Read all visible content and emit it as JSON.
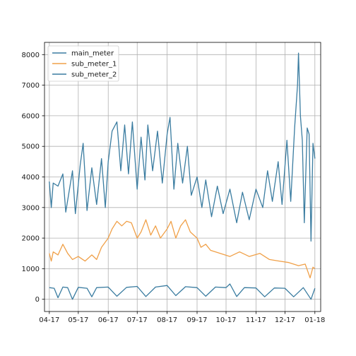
{
  "chart_data": {
    "type": "line",
    "title": "",
    "xlabel": "",
    "ylabel": "",
    "grid": true,
    "legend": {
      "placement": "top-left"
    },
    "x_range": [
      "2017-03-27",
      "2018-01-07"
    ],
    "ylim": [
      -400,
      8400
    ],
    "x_ticks": [
      {
        "date": "2017-04-01",
        "label": "04-17"
      },
      {
        "date": "2017-05-01",
        "label": "05-17"
      },
      {
        "date": "2017-06-01",
        "label": "06-17"
      },
      {
        "date": "2017-07-01",
        "label": "07-17"
      },
      {
        "date": "2017-08-01",
        "label": "08-17"
      },
      {
        "date": "2017-09-01",
        "label": "09-17"
      },
      {
        "date": "2017-10-01",
        "label": "10-17"
      },
      {
        "date": "2017-11-01",
        "label": "11-17"
      },
      {
        "date": "2017-12-01",
        "label": "12-17"
      },
      {
        "date": "2018-01-01",
        "label": "01-18"
      }
    ],
    "y_ticks": [
      0,
      1000,
      2000,
      3000,
      4000,
      5000,
      6000,
      7000,
      8000
    ],
    "series": [
      {
        "name": "main_meter",
        "color": "#3a7ca0",
        "points": [
          [
            "2017-04-01",
            3850
          ],
          [
            "2017-04-03",
            3000
          ],
          [
            "2017-04-05",
            3800
          ],
          [
            "2017-04-10",
            3700
          ],
          [
            "2017-04-15",
            4100
          ],
          [
            "2017-04-18",
            2850
          ],
          [
            "2017-04-25",
            4200
          ],
          [
            "2017-04-28",
            2800
          ],
          [
            "2017-05-03",
            4400
          ],
          [
            "2017-05-06",
            5100
          ],
          [
            "2017-05-10",
            2900
          ],
          [
            "2017-05-15",
            4300
          ],
          [
            "2017-05-20",
            3100
          ],
          [
            "2017-05-25",
            4600
          ],
          [
            "2017-05-29",
            3000
          ],
          [
            "2017-06-01",
            4500
          ],
          [
            "2017-06-05",
            5500
          ],
          [
            "2017-06-10",
            5800
          ],
          [
            "2017-06-14",
            4200
          ],
          [
            "2017-06-18",
            5700
          ],
          [
            "2017-06-22",
            4100
          ],
          [
            "2017-06-26",
            5800
          ],
          [
            "2017-07-01",
            3600
          ],
          [
            "2017-07-05",
            5300
          ],
          [
            "2017-07-09",
            3900
          ],
          [
            "2017-07-12",
            5700
          ],
          [
            "2017-07-17",
            4200
          ],
          [
            "2017-07-22",
            5500
          ],
          [
            "2017-07-27",
            3800
          ],
          [
            "2017-08-01",
            5400
          ],
          [
            "2017-08-04",
            5950
          ],
          [
            "2017-08-08",
            3600
          ],
          [
            "2017-08-12",
            5100
          ],
          [
            "2017-08-17",
            3800
          ],
          [
            "2017-08-22",
            5000
          ],
          [
            "2017-08-26",
            3400
          ],
          [
            "2017-09-01",
            4000
          ],
          [
            "2017-09-06",
            3000
          ],
          [
            "2017-09-10",
            3900
          ],
          [
            "2017-09-16",
            2700
          ],
          [
            "2017-09-22",
            3700
          ],
          [
            "2017-09-28",
            2800
          ],
          [
            "2017-10-05",
            3600
          ],
          [
            "2017-10-12",
            2500
          ],
          [
            "2017-10-18",
            3500
          ],
          [
            "2017-10-25",
            2600
          ],
          [
            "2017-11-01",
            3600
          ],
          [
            "2017-11-08",
            3000
          ],
          [
            "2017-11-13",
            4200
          ],
          [
            "2017-11-18",
            3200
          ],
          [
            "2017-11-24",
            4500
          ],
          [
            "2017-11-28",
            3100
          ],
          [
            "2017-12-03",
            5200
          ],
          [
            "2017-12-07",
            3200
          ],
          [
            "2017-12-11",
            5600
          ],
          [
            "2017-12-14",
            7000
          ],
          [
            "2017-12-15",
            8050
          ],
          [
            "2017-12-17",
            6000
          ],
          [
            "2017-12-19",
            5200
          ],
          [
            "2017-12-21",
            2500
          ],
          [
            "2017-12-24",
            5600
          ],
          [
            "2017-12-26",
            5400
          ],
          [
            "2017-12-28",
            1900
          ],
          [
            "2017-12-30",
            5100
          ],
          [
            "2018-01-01",
            4600
          ]
        ]
      },
      {
        "name": "sub_meter_1",
        "color": "#f0a048",
        "points": [
          [
            "2017-04-01",
            1500
          ],
          [
            "2017-04-03",
            1250
          ],
          [
            "2017-04-05",
            1550
          ],
          [
            "2017-04-10",
            1450
          ],
          [
            "2017-04-15",
            1800
          ],
          [
            "2017-04-20",
            1500
          ],
          [
            "2017-04-25",
            1300
          ],
          [
            "2017-05-01",
            1400
          ],
          [
            "2017-05-08",
            1250
          ],
          [
            "2017-05-15",
            1450
          ],
          [
            "2017-05-20",
            1300
          ],
          [
            "2017-05-25",
            1700
          ],
          [
            "2017-06-01",
            2000
          ],
          [
            "2017-06-05",
            2300
          ],
          [
            "2017-06-10",
            2550
          ],
          [
            "2017-06-15",
            2400
          ],
          [
            "2017-06-20",
            2550
          ],
          [
            "2017-06-25",
            2500
          ],
          [
            "2017-07-01",
            2000
          ],
          [
            "2017-07-05",
            2200
          ],
          [
            "2017-07-10",
            2600
          ],
          [
            "2017-07-15",
            2100
          ],
          [
            "2017-07-20",
            2400
          ],
          [
            "2017-07-25",
            2000
          ],
          [
            "2017-08-01",
            2300
          ],
          [
            "2017-08-05",
            2550
          ],
          [
            "2017-08-10",
            2000
          ],
          [
            "2017-08-15",
            2400
          ],
          [
            "2017-08-20",
            2600
          ],
          [
            "2017-08-25",
            2200
          ],
          [
            "2017-09-01",
            2000
          ],
          [
            "2017-09-05",
            1700
          ],
          [
            "2017-09-10",
            1800
          ],
          [
            "2017-09-15",
            1600
          ],
          [
            "2017-09-25",
            1500
          ],
          [
            "2017-10-05",
            1400
          ],
          [
            "2017-10-15",
            1550
          ],
          [
            "2017-10-25",
            1400
          ],
          [
            "2017-11-05",
            1500
          ],
          [
            "2017-11-15",
            1300
          ],
          [
            "2017-11-25",
            1250
          ],
          [
            "2017-12-05",
            1200
          ],
          [
            "2017-12-15",
            1100
          ],
          [
            "2017-12-22",
            1150
          ],
          [
            "2017-12-27",
            700
          ],
          [
            "2017-12-30",
            1050
          ],
          [
            "2018-01-01",
            1000
          ]
        ]
      },
      {
        "name": "sub_meter_2",
        "color": "#3a7ca0",
        "points": [
          [
            "2017-04-01",
            380
          ],
          [
            "2017-04-06",
            360
          ],
          [
            "2017-04-10",
            50
          ],
          [
            "2017-04-15",
            400
          ],
          [
            "2017-04-20",
            380
          ],
          [
            "2017-04-25",
            0
          ],
          [
            "2017-05-01",
            390
          ],
          [
            "2017-05-10",
            360
          ],
          [
            "2017-05-15",
            80
          ],
          [
            "2017-05-20",
            380
          ],
          [
            "2017-06-01",
            400
          ],
          [
            "2017-06-10",
            100
          ],
          [
            "2017-06-20",
            390
          ],
          [
            "2017-07-01",
            420
          ],
          [
            "2017-07-10",
            90
          ],
          [
            "2017-07-20",
            400
          ],
          [
            "2017-08-01",
            450
          ],
          [
            "2017-08-10",
            120
          ],
          [
            "2017-08-20",
            410
          ],
          [
            "2017-09-01",
            380
          ],
          [
            "2017-09-10",
            100
          ],
          [
            "2017-09-20",
            400
          ],
          [
            "2017-10-01",
            380
          ],
          [
            "2017-10-05",
            500
          ],
          [
            "2017-10-12",
            90
          ],
          [
            "2017-10-20",
            380
          ],
          [
            "2017-11-01",
            370
          ],
          [
            "2017-11-10",
            80
          ],
          [
            "2017-11-20",
            370
          ],
          [
            "2017-12-01",
            360
          ],
          [
            "2017-12-10",
            80
          ],
          [
            "2017-12-20",
            380
          ],
          [
            "2017-12-28",
            0
          ],
          [
            "2018-01-01",
            360
          ]
        ]
      }
    ]
  }
}
